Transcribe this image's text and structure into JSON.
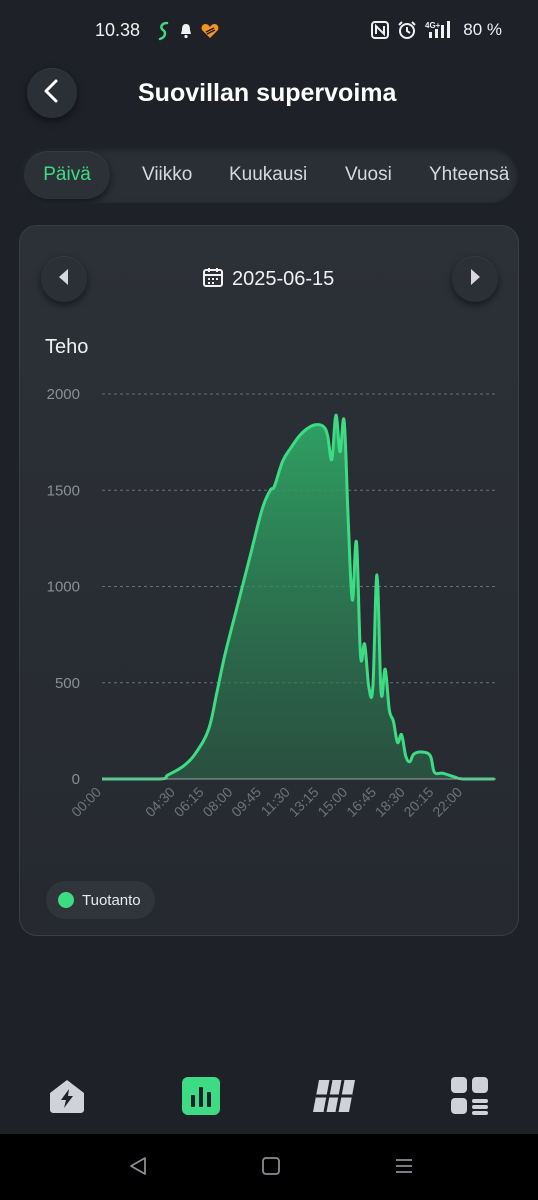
{
  "status_bar": {
    "time": "10.38",
    "battery": "80 %",
    "network": "4G+",
    "icons": [
      "s-app-icon",
      "bell-icon",
      "heart-app-icon",
      "nfc-icon",
      "alarm-icon",
      "signal-icon"
    ]
  },
  "header": {
    "title": "Suovillan supervoima",
    "back_icon": "chevron-left-icon"
  },
  "tabs": [
    {
      "label": "Päivä",
      "active": true
    },
    {
      "label": "Viikko",
      "active": false
    },
    {
      "label": "Kuukausi",
      "active": false
    },
    {
      "label": "Vuosi",
      "active": false
    },
    {
      "label": "Yhteensä",
      "active": false
    }
  ],
  "card": {
    "date": "2025-06-15",
    "date_icon": "calendar-icon",
    "prev_icon": "triangle-left-icon",
    "next_icon": "triangle-right-icon",
    "chart_label": "Teho",
    "legend": "Tuotanto"
  },
  "chart_data": {
    "type": "area",
    "title": "Teho",
    "xlabel": "",
    "ylabel": "",
    "ylim": [
      0,
      2000
    ],
    "yticks": [
      "0",
      "500",
      "1000",
      "1500",
      "2000"
    ],
    "xticks": [
      "00:00",
      "04:30",
      "06:15",
      "08:00",
      "09:45",
      "11:30",
      "13:15",
      "15:00",
      "16:45",
      "18:30",
      "20:15",
      "22:00"
    ],
    "grid": true,
    "legend_position": "bottom-left",
    "color": "#3ddc84",
    "series": [
      {
        "name": "Tuotanto",
        "points": [
          [
            "00:00",
            0
          ],
          [
            "03:30",
            0
          ],
          [
            "04:00",
            20
          ],
          [
            "05:00",
            70
          ],
          [
            "05:45",
            140
          ],
          [
            "06:30",
            260
          ],
          [
            "07:00",
            450
          ],
          [
            "07:30",
            650
          ],
          [
            "08:15",
            900
          ],
          [
            "09:00",
            1150
          ],
          [
            "09:45",
            1400
          ],
          [
            "10:15",
            1500
          ],
          [
            "10:30",
            1520
          ],
          [
            "11:00",
            1650
          ],
          [
            "11:30",
            1720
          ],
          [
            "12:00",
            1780
          ],
          [
            "12:30",
            1820
          ],
          [
            "13:00",
            1840
          ],
          [
            "13:30",
            1830
          ],
          [
            "13:45",
            1780
          ],
          [
            "14:00",
            1660
          ],
          [
            "14:15",
            1890
          ],
          [
            "14:30",
            1700
          ],
          [
            "14:45",
            1860
          ],
          [
            "15:00",
            1340
          ],
          [
            "15:15",
            930
          ],
          [
            "15:30",
            1230
          ],
          [
            "15:45",
            640
          ],
          [
            "16:00",
            700
          ],
          [
            "16:15",
            480
          ],
          [
            "16:30",
            480
          ],
          [
            "16:45",
            1060
          ],
          [
            "17:00",
            450
          ],
          [
            "17:15",
            570
          ],
          [
            "17:30",
            360
          ],
          [
            "17:45",
            300
          ],
          [
            "18:00",
            190
          ],
          [
            "18:15",
            230
          ],
          [
            "18:30",
            120
          ],
          [
            "18:45",
            90
          ],
          [
            "19:00",
            130
          ],
          [
            "19:30",
            140
          ],
          [
            "20:00",
            120
          ],
          [
            "20:15",
            35
          ],
          [
            "20:45",
            30
          ],
          [
            "21:30",
            10
          ],
          [
            "22:00",
            0
          ],
          [
            "23:55",
            0
          ]
        ]
      }
    ]
  },
  "bottom_nav": [
    {
      "icon": "home-bolt-icon",
      "active": false
    },
    {
      "icon": "bar-chart-icon",
      "active": true
    },
    {
      "icon": "solar-panel-icon",
      "active": false
    },
    {
      "icon": "grid-menu-icon",
      "active": false
    }
  ],
  "system_nav": [
    "back-icon",
    "home-icon",
    "recents-icon"
  ]
}
